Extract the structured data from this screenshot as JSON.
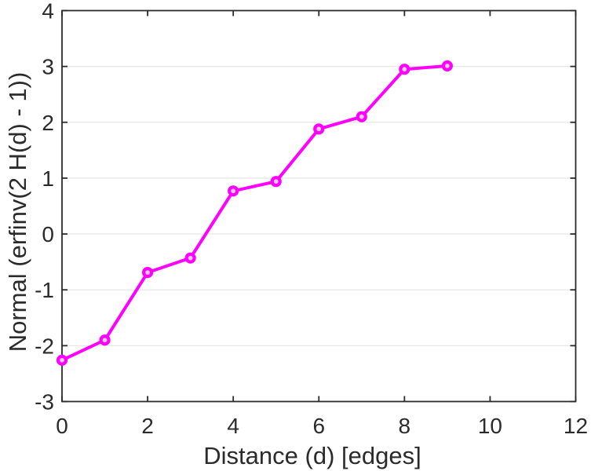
{
  "chart_data": {
    "type": "line",
    "title": "",
    "xlabel": "Distance (d) [edges]",
    "ylabel": "Normal (erfinv(2 H(d) - 1))",
    "x": [
      0,
      1,
      2,
      3,
      4,
      5,
      6,
      7,
      8,
      9
    ],
    "y": [
      -2.26,
      -1.9,
      -0.69,
      -0.43,
      0.77,
      0.94,
      1.88,
      2.1,
      2.95,
      3.01
    ],
    "xlim": [
      0,
      12
    ],
    "ylim": [
      -3,
      4
    ],
    "xticks": [
      0,
      2,
      4,
      6,
      8,
      10,
      12
    ],
    "yticks": [
      -3,
      -2,
      -1,
      0,
      1,
      2,
      3,
      4
    ],
    "grid": "horizontal-only",
    "legend_position": "none",
    "marker": "circle",
    "line_style": "solid"
  },
  "colors": {
    "line": "#ff00ff",
    "marker_fill": "#ffc6ff",
    "axis": "#2b2b2b",
    "grid": "#e7e7e7",
    "background": "#ffffff"
  }
}
